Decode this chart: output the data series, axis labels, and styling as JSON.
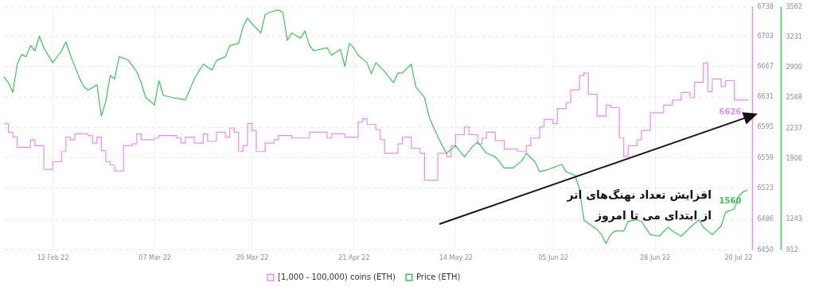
{
  "chart_data": {
    "type": "line",
    "xlim": [
      "2022-02-01",
      "2022-07-20"
    ],
    "xticks": [
      {
        "value": "2022-02-12",
        "label": "12 Feb 22"
      },
      {
        "value": "2022-03-07",
        "label": "07 Mar 22"
      },
      {
        "value": "2022-03-29",
        "label": "29 Mar 22"
      },
      {
        "value": "2022-04-21",
        "label": "21 Apr 22"
      },
      {
        "value": "2022-05-14",
        "label": "14 May 22"
      },
      {
        "value": "2022-06-05",
        "label": "05 Jun 22"
      },
      {
        "value": "2022-06-28",
        "label": "28 Jun 22"
      },
      {
        "value": "2022-07-20",
        "label": "20 Jul 22"
      }
    ],
    "ylim": [
      6450,
      6738
    ],
    "yticks": [
      6450,
      6486,
      6523,
      6559,
      6595,
      6631,
      6667,
      6703,
      6738
    ],
    "y2lim": [
      912,
      3562
    ],
    "y2ticks": [
      912,
      1243,
      1906,
      2237,
      2568,
      2900,
      3231,
      3562
    ],
    "grid": true,
    "legend": "bottom",
    "annotations": [
      "افزایش تعداد نهنگ‌های اتر",
      "از ابتدای می تا امروز"
    ],
    "series": [
      {
        "name": "[1,000 - 100,000) coins (ETH)",
        "color": "#e98ce9",
        "type": "step",
        "axis": "y",
        "x": [
          "2022-02-01",
          "2022-02-02",
          "2022-02-03",
          "2022-02-04",
          "2022-02-07",
          "2022-02-08",
          "2022-02-10",
          "2022-02-12",
          "2022-02-14",
          "2022-02-15",
          "2022-02-16",
          "2022-02-17",
          "2022-02-20",
          "2022-02-21",
          "2022-02-22",
          "2022-02-23",
          "2022-02-24",
          "2022-02-25",
          "2022-02-26",
          "2022-02-28",
          "2022-03-02",
          "2022-03-03",
          "2022-03-04",
          "2022-03-07",
          "2022-03-08",
          "2022-03-12",
          "2022-03-13",
          "2022-03-14",
          "2022-03-16",
          "2022-03-18",
          "2022-03-19",
          "2022-03-21",
          "2022-03-23",
          "2022-03-24",
          "2022-03-25",
          "2022-03-26",
          "2022-03-27",
          "2022-03-28",
          "2022-03-29",
          "2022-03-30",
          "2022-04-01",
          "2022-04-03",
          "2022-04-04",
          "2022-04-07",
          "2022-04-11",
          "2022-04-15",
          "2022-04-16",
          "2022-04-19",
          "2022-04-22",
          "2022-04-23",
          "2022-04-24",
          "2022-04-26",
          "2022-04-27",
          "2022-04-28",
          "2022-05-01",
          "2022-05-02",
          "2022-05-04",
          "2022-05-06",
          "2022-05-07",
          "2022-05-10",
          "2022-05-12",
          "2022-05-13",
          "2022-05-14",
          "2022-05-16",
          "2022-05-17",
          "2022-05-19",
          "2022-05-20",
          "2022-05-21",
          "2022-05-23",
          "2022-05-25",
          "2022-05-28",
          "2022-05-30",
          "2022-05-31",
          "2022-06-02",
          "2022-06-03",
          "2022-06-05",
          "2022-06-06",
          "2022-06-08",
          "2022-06-09",
          "2022-06-11",
          "2022-06-12",
          "2022-06-13",
          "2022-06-15",
          "2022-06-17",
          "2022-06-18",
          "2022-06-20",
          "2022-06-21",
          "2022-06-22",
          "2022-06-24",
          "2022-06-25",
          "2022-06-27",
          "2022-06-30",
          "2022-07-02",
          "2022-07-04",
          "2022-07-06",
          "2022-07-07",
          "2022-07-09",
          "2022-07-10",
          "2022-07-11",
          "2022-07-13",
          "2022-07-14",
          "2022-07-16",
          "2022-07-19"
        ],
        "values": [
          6599,
          6589,
          6583,
          6571,
          6580,
          6573,
          6545,
          6554,
          6566,
          6583,
          6580,
          6587,
          6585,
          6576,
          6583,
          6567,
          6554,
          6550,
          6543,
          6573,
          6575,
          6587,
          6580,
          6582,
          6585,
          6582,
          6576,
          6583,
          6576,
          6587,
          6578,
          6589,
          6583,
          6594,
          6589,
          6566,
          6573,
          6599,
          6591,
          6566,
          6576,
          6580,
          6585,
          6582,
          6589,
          6582,
          6587,
          6583,
          6601,
          6605,
          6598,
          6592,
          6580,
          6564,
          6575,
          6583,
          6570,
          6564,
          6532,
          6564,
          6560,
          6573,
          6586,
          6595,
          6586,
          6575,
          6582,
          6589,
          6579,
          6569,
          6566,
          6573,
          6582,
          6595,
          6604,
          6599,
          6617,
          6624,
          6639,
          6656,
          6659,
          6634,
          6608,
          6621,
          6618,
          6582,
          6560,
          6573,
          6580,
          6591,
          6612,
          6621,
          6627,
          6636,
          6630,
          6648,
          6671,
          6637,
          6652,
          6643,
          6650,
          6627,
          6626
        ],
        "value_labels": [
          null,
          null,
          null,
          null,
          null,
          null,
          null,
          null,
          null,
          null,
          null,
          null,
          null,
          null,
          null,
          null,
          null,
          null,
          null,
          null,
          null,
          null,
          null,
          null,
          null,
          null,
          null,
          null,
          null,
          null,
          null,
          null,
          null,
          null,
          null,
          null,
          null,
          null,
          null,
          null,
          null,
          null,
          null,
          null,
          null,
          null,
          null,
          null,
          null,
          null,
          null,
          null,
          null,
          null,
          null,
          null,
          null,
          null,
          null,
          null,
          null,
          null,
          null,
          null,
          null,
          null,
          null,
          null,
          null,
          null,
          null,
          null,
          null,
          null,
          null,
          null,
          null,
          null,
          null,
          null,
          null,
          null,
          null,
          null,
          null,
          null,
          null,
          null,
          null,
          null,
          null,
          null,
          null,
          null,
          null,
          null,
          null,
          null,
          null,
          null,
          null,
          null,
          "6626"
        ]
      },
      {
        "name": "Price (ETH)",
        "color": "#3cc05a",
        "type": "line",
        "axis": "y2",
        "x": [
          "2022-02-01",
          "2022-02-02",
          "2022-02-03",
          "2022-02-04",
          "2022-02-05",
          "2022-02-06",
          "2022-02-07",
          "2022-02-08",
          "2022-02-09",
          "2022-02-10",
          "2022-02-12",
          "2022-02-14",
          "2022-02-15",
          "2022-02-16",
          "2022-02-18",
          "2022-02-19",
          "2022-02-20",
          "2022-02-22",
          "2022-02-23",
          "2022-02-24",
          "2022-02-25",
          "2022-02-26",
          "2022-02-27",
          "2022-03-01",
          "2022-03-03",
          "2022-03-04",
          "2022-03-05",
          "2022-03-07",
          "2022-03-08",
          "2022-03-09",
          "2022-03-11",
          "2022-03-14",
          "2022-03-16",
          "2022-03-18",
          "2022-03-20",
          "2022-03-21",
          "2022-03-23",
          "2022-03-24",
          "2022-03-26",
          "2022-03-27",
          "2022-03-28",
          "2022-03-29",
          "2022-03-31",
          "2022-04-01",
          "2022-04-02",
          "2022-04-04",
          "2022-04-05",
          "2022-04-06",
          "2022-04-07",
          "2022-04-09",
          "2022-04-10",
          "2022-04-11",
          "2022-04-12",
          "2022-04-15",
          "2022-04-16",
          "2022-04-18",
          "2022-04-19",
          "2022-04-20",
          "2022-04-21",
          "2022-04-22",
          "2022-04-24",
          "2022-04-25",
          "2022-04-26",
          "2022-04-28",
          "2022-04-30",
          "2022-05-01",
          "2022-05-02",
          "2022-05-04",
          "2022-05-05",
          "2022-05-07",
          "2022-05-08",
          "2022-05-09",
          "2022-05-11",
          "2022-05-12",
          "2022-05-14",
          "2022-05-16",
          "2022-05-18",
          "2022-05-19",
          "2022-05-21",
          "2022-05-23",
          "2022-05-25",
          "2022-05-27",
          "2022-05-29",
          "2022-05-30",
          "2022-06-01",
          "2022-06-02",
          "2022-06-04",
          "2022-06-07",
          "2022-06-08",
          "2022-06-10",
          "2022-06-11",
          "2022-06-12",
          "2022-06-13",
          "2022-06-15",
          "2022-06-16",
          "2022-06-17",
          "2022-06-18",
          "2022-06-19",
          "2022-06-21",
          "2022-06-22",
          "2022-06-24",
          "2022-06-25",
          "2022-06-27",
          "2022-06-29",
          "2022-07-01",
          "2022-07-02",
          "2022-07-04",
          "2022-07-06",
          "2022-07-08",
          "2022-07-09",
          "2022-07-11",
          "2022-07-13",
          "2022-07-14",
          "2022-07-16",
          "2022-07-17",
          "2022-07-18",
          "2022-07-19"
        ],
        "values": [
          2794,
          2730,
          2625,
          2932,
          3037,
          3013,
          3134,
          3077,
          3239,
          3110,
          2948,
          3077,
          3174,
          3029,
          2786,
          2689,
          2649,
          2706,
          2366,
          2528,
          2811,
          2770,
          3013,
          2980,
          2851,
          2730,
          2568,
          2487,
          2754,
          2592,
          2568,
          2544,
          2770,
          2932,
          2867,
          2972,
          3013,
          3134,
          3158,
          3336,
          3433,
          3376,
          3271,
          3473,
          3497,
          3522,
          3497,
          3190,
          3271,
          3215,
          3295,
          3134,
          3077,
          3110,
          3029,
          3093,
          2908,
          3158,
          3110,
          3029,
          2948,
          2827,
          2948,
          2851,
          2730,
          2835,
          2835,
          2932,
          2689,
          2568,
          2366,
          2245,
          2043,
          1962,
          2043,
          1922,
          2043,
          2083,
          1962,
          1922,
          1801,
          1801,
          1881,
          1962,
          1865,
          1760,
          1784,
          1841,
          1760,
          1720,
          1574,
          1235,
          1195,
          1130,
          1073,
          976,
          1073,
          1114,
          1114,
          1219,
          1235,
          1219,
          1073,
          1057,
          1154,
          1114,
          1057,
          1154,
          1235,
          1154,
          1073,
          1170,
          1316,
          1356,
          1494,
          1542,
          1560
        ],
        "value_labels": [
          null,
          null,
          null,
          null,
          null,
          null,
          null,
          null,
          null,
          null,
          null,
          null,
          null,
          null,
          null,
          null,
          null,
          null,
          null,
          null,
          null,
          null,
          null,
          null,
          null,
          null,
          null,
          null,
          null,
          null,
          null,
          null,
          null,
          null,
          null,
          null,
          null,
          null,
          null,
          null,
          null,
          null,
          null,
          null,
          null,
          null,
          null,
          null,
          null,
          null,
          null,
          null,
          null,
          null,
          null,
          null,
          null,
          null,
          null,
          null,
          null,
          null,
          null,
          null,
          null,
          null,
          null,
          null,
          null,
          null,
          null,
          null,
          null,
          null,
          null,
          null,
          null,
          null,
          null,
          null,
          null,
          null,
          null,
          null,
          null,
          null,
          null,
          null,
          null,
          null,
          null,
          null,
          null,
          null,
          null,
          null,
          null,
          null,
          null,
          null,
          null,
          null,
          null,
          null,
          null,
          null,
          null,
          null,
          null,
          null,
          null,
          null,
          null,
          null,
          null,
          null,
          "1560"
        ]
      }
    ]
  }
}
